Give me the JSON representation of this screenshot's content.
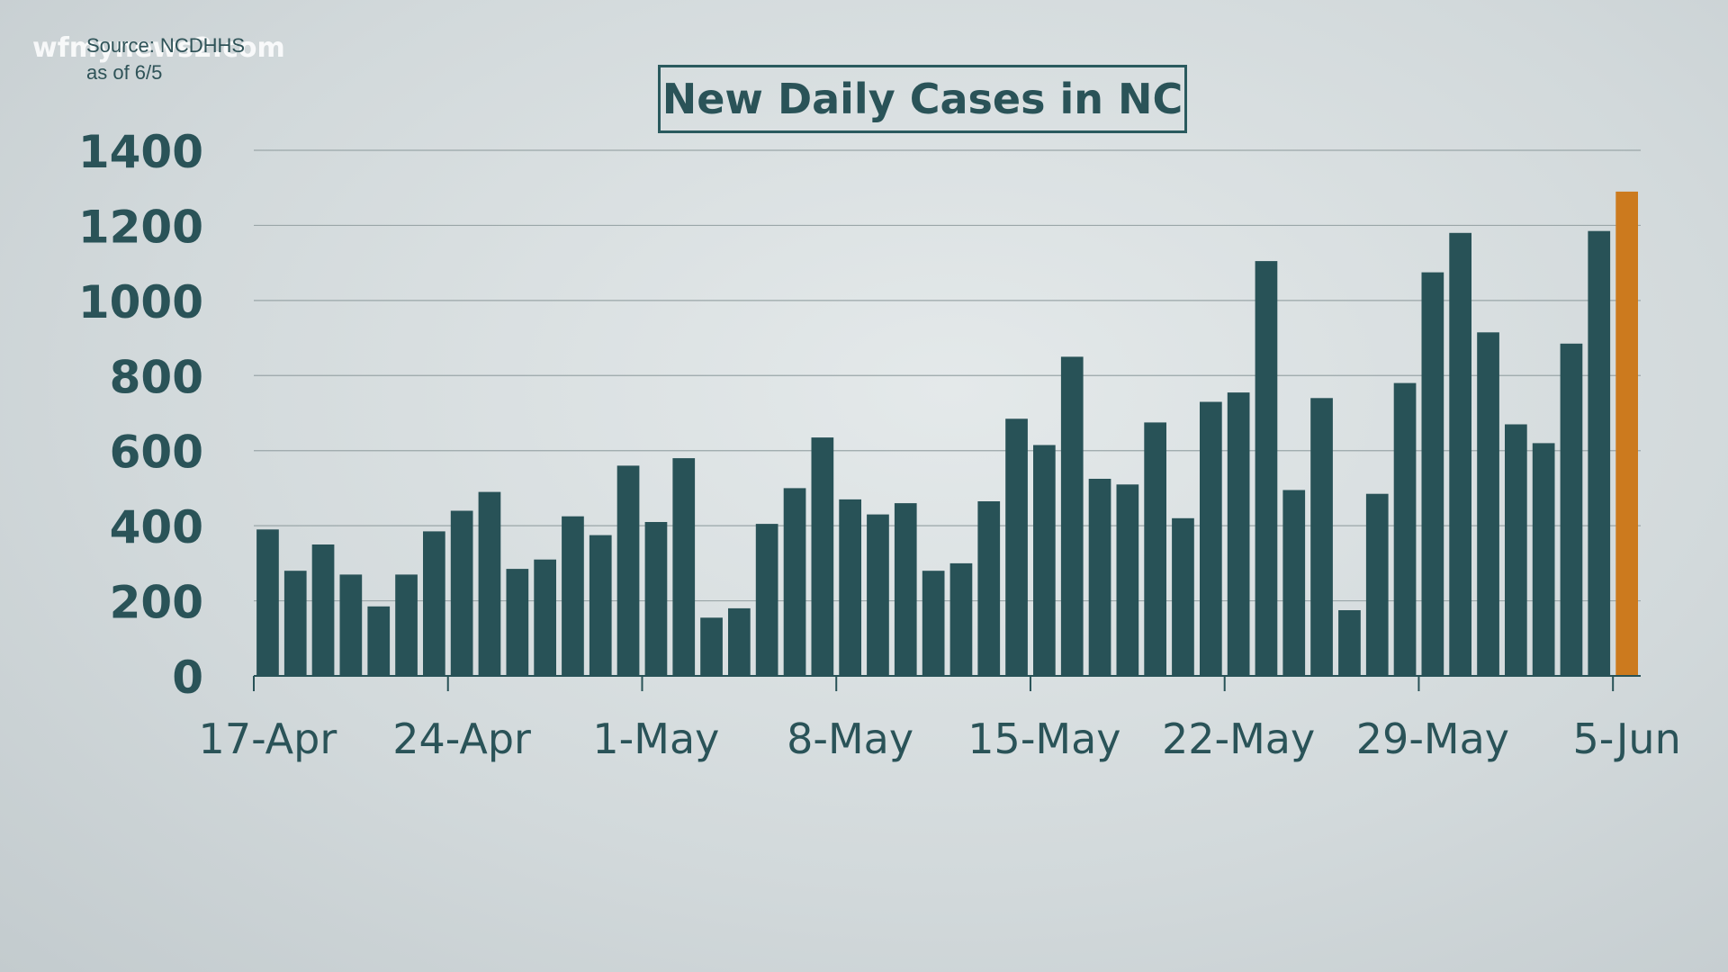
{
  "watermark": "wfmynews2.com",
  "source": {
    "line1": "Source: NCDHHS",
    "line2": "as of 6/5"
  },
  "colors": {
    "bar": "#285257",
    "highlight": "#cc7a1e",
    "grid": "#9aa6a8",
    "text": "#2a5358"
  },
  "chart_data": {
    "type": "bar",
    "title": "New Daily Cases in NC",
    "xlabel": "",
    "ylabel": "",
    "ylim": [
      0,
      1400
    ],
    "yticks": [
      0,
      200,
      400,
      600,
      800,
      1000,
      1200,
      1400
    ],
    "grid": true,
    "x_tick_labels": [
      "17-Apr",
      "24-Apr",
      "1-May",
      "8-May",
      "15-May",
      "22-May",
      "29-May",
      "5-Jun"
    ],
    "categories": [
      "17-Apr",
      "18-Apr",
      "19-Apr",
      "20-Apr",
      "21-Apr",
      "22-Apr",
      "23-Apr",
      "24-Apr",
      "25-Apr",
      "26-Apr",
      "27-Apr",
      "28-Apr",
      "29-Apr",
      "30-Apr",
      "1-May",
      "2-May",
      "3-May",
      "4-May",
      "5-May",
      "6-May",
      "7-May",
      "8-May",
      "9-May",
      "10-May",
      "11-May",
      "12-May",
      "13-May",
      "14-May",
      "15-May",
      "16-May",
      "17-May",
      "18-May",
      "19-May",
      "20-May",
      "21-May",
      "22-May",
      "23-May",
      "24-May",
      "25-May",
      "26-May",
      "27-May",
      "28-May",
      "29-May",
      "30-May",
      "31-May",
      "1-Jun",
      "2-Jun",
      "3-Jun",
      "4-Jun",
      "5-Jun"
    ],
    "values": [
      390,
      280,
      350,
      270,
      185,
      270,
      385,
      440,
      490,
      285,
      310,
      425,
      375,
      560,
      410,
      580,
      155,
      180,
      405,
      500,
      635,
      470,
      430,
      460,
      280,
      300,
      465,
      685,
      615,
      850,
      525,
      510,
      675,
      420,
      730,
      755,
      1105,
      495,
      740,
      175,
      485,
      780,
      1075,
      1180,
      915,
      670,
      620,
      885,
      1185,
      1290
    ],
    "highlight_index": 49
  }
}
